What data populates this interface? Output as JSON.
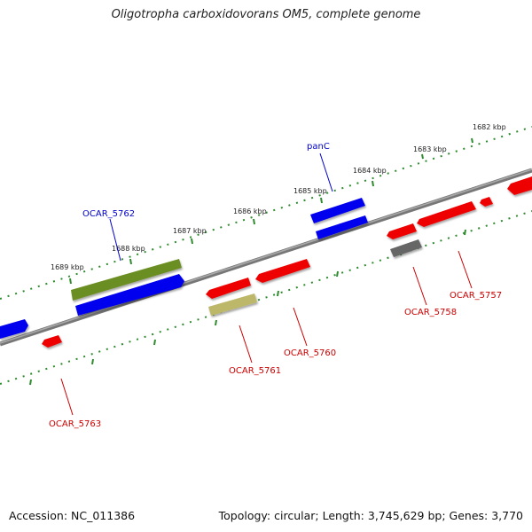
{
  "title": "Oligotropha carboxidovorans OM5, complete genome",
  "footer": {
    "accession": "Accession: NC_011386",
    "topology": "Topology: circular; Length: 3,745,629 bp; Genes: 3,770"
  },
  "colors": {
    "forward_cds": "#0000ee",
    "reverse_cds": "#ee0000",
    "rna": "#6b8e23",
    "pseudo": "#666666",
    "other": "#bdb76b",
    "backbone": "#808080",
    "tick": "#2e8b2e",
    "forward_label": "#0000cc",
    "reverse_label": "#cc0000"
  },
  "tick_labels": [
    "1682 kbp",
    "1683 kbp",
    "1684 kbp",
    "1685 kbp",
    "1686 kbp",
    "1687 kbp",
    "1688 kbp",
    "1689 kbp"
  ],
  "gene_labels": {
    "panC": "panC",
    "OCAR_5762": "OCAR_5762",
    "OCAR_5763": "OCAR_5763",
    "OCAR_5761": "OCAR_5761",
    "OCAR_5760": "OCAR_5760",
    "OCAR_5758": "OCAR_5758",
    "OCAR_5757": "OCAR_5757"
  }
}
